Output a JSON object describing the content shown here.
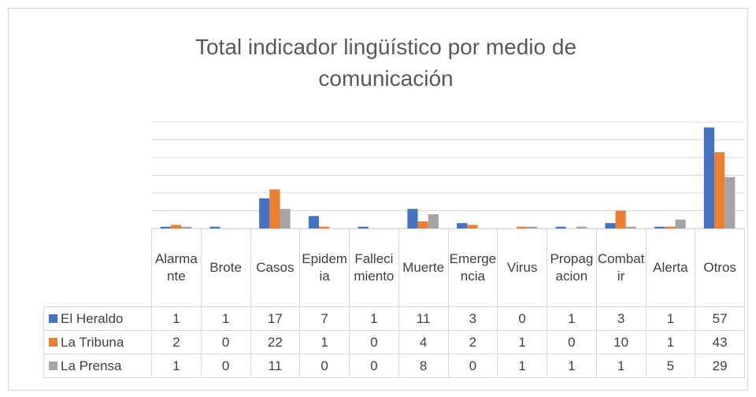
{
  "chart_data": {
    "type": "bar",
    "title": "Total indicador lingüístico por medio de comunicación",
    "categories": [
      "Alarmante",
      "Brote",
      "Casos",
      "Epidemia",
      "Fallecimiento",
      "Muerte",
      "Emergencia",
      "Virus",
      "Propagacion",
      "Combatir",
      "Alerta",
      "Otros"
    ],
    "series": [
      {
        "name": "El Heraldo",
        "color": "#4472c4",
        "values": [
          1,
          1,
          17,
          7,
          1,
          11,
          3,
          0,
          1,
          3,
          1,
          57
        ]
      },
      {
        "name": "La Tribuna",
        "color": "#ed7d31",
        "values": [
          2,
          0,
          22,
          1,
          0,
          4,
          2,
          1,
          0,
          10,
          1,
          43
        ]
      },
      {
        "name": "La Prensa",
        "color": "#a5a5a5",
        "values": [
          1,
          0,
          11,
          0,
          0,
          8,
          0,
          1,
          1,
          1,
          5,
          29
        ]
      }
    ],
    "ylim": [
      0,
      60
    ],
    "yticks": [
      0,
      10,
      20,
      30,
      40,
      50,
      60
    ],
    "grid": true
  }
}
